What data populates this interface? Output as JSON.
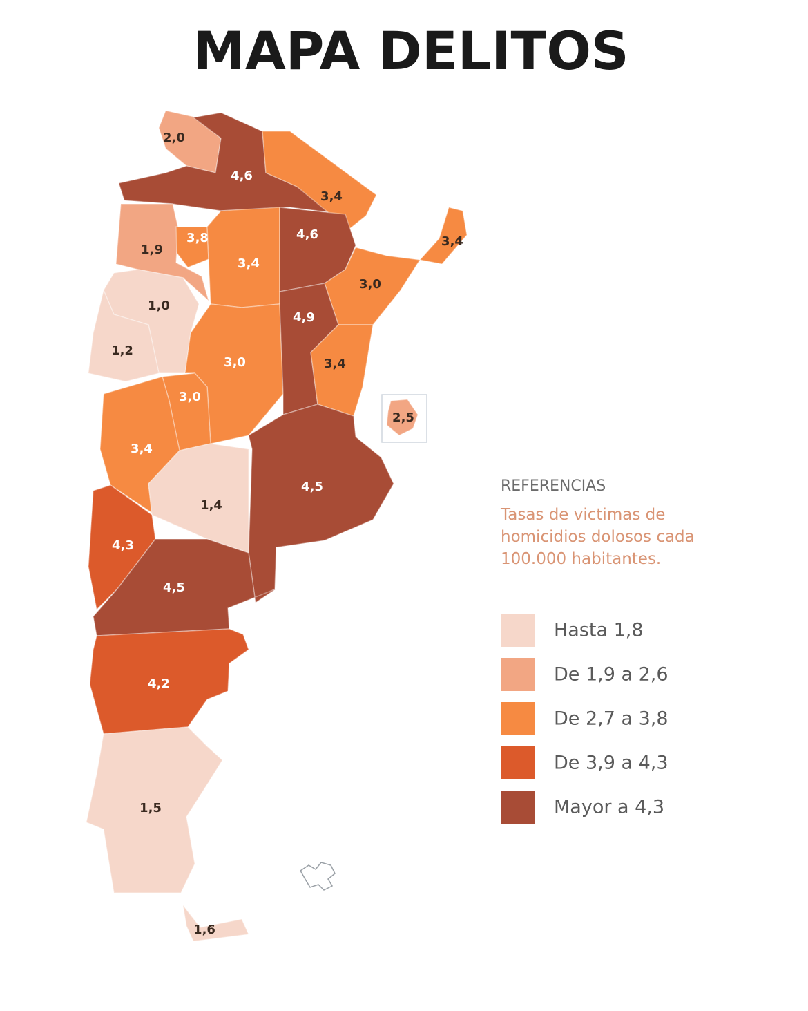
{
  "title": "MAPA DELITOS",
  "legend": {
    "title": "REFERENCIAS",
    "description": [
      "Tasas de victimas de",
      "homicidios dolosos cada",
      "100.000 habitantes."
    ],
    "items": [
      {
        "label": "Hasta 1,8",
        "color": "#f6d7ca"
      },
      {
        "label": "De 1,9 a 2,6",
        "color": "#f2a683"
      },
      {
        "label": "De 2,7 a 3,8",
        "color": "#f68a42"
      },
      {
        "label": "De 3,9 a 4,3",
        "color": "#dc5a2b"
      },
      {
        "label": "Mayor a 4,3",
        "color": "#a84c36"
      }
    ]
  },
  "regions": [
    {
      "label": "2,0",
      "color": "#f2a683"
    },
    {
      "label": "4,6",
      "color": "#a84c36"
    },
    {
      "label": "3,4",
      "color": "#f68a42"
    },
    {
      "label": "3,4",
      "color": "#f68a42"
    },
    {
      "label": "1,9",
      "color": "#f2a683"
    },
    {
      "label": "3,8",
      "color": "#f68a42"
    },
    {
      "label": "3,4",
      "color": "#f68a42"
    },
    {
      "label": "4,6",
      "color": "#a84c36"
    },
    {
      "label": "3,0",
      "color": "#f68a42"
    },
    {
      "label": "1,0",
      "color": "#f6d7ca"
    },
    {
      "label": "1,2",
      "color": "#f6d7ca"
    },
    {
      "label": "3,0",
      "color": "#f68a42"
    },
    {
      "label": "4,9",
      "color": "#a84c36"
    },
    {
      "label": "3,4",
      "color": "#f68a42"
    },
    {
      "label": "3,0",
      "color": "#f68a42"
    },
    {
      "label": "3,4",
      "color": "#f68a42"
    },
    {
      "label": "4,5",
      "color": "#a84c36"
    },
    {
      "label": "1,4",
      "color": "#f6d7ca"
    },
    {
      "label": "4,3",
      "color": "#dc5a2b"
    },
    {
      "label": "4,5",
      "color": "#a84c36"
    },
    {
      "label": "4,2",
      "color": "#dc5a2b"
    },
    {
      "label": "1,5",
      "color": "#f6d7ca"
    },
    {
      "label": "1,6",
      "color": "#f6d7ca"
    },
    {
      "label": "2,5",
      "color": "#f2a683"
    }
  ]
}
